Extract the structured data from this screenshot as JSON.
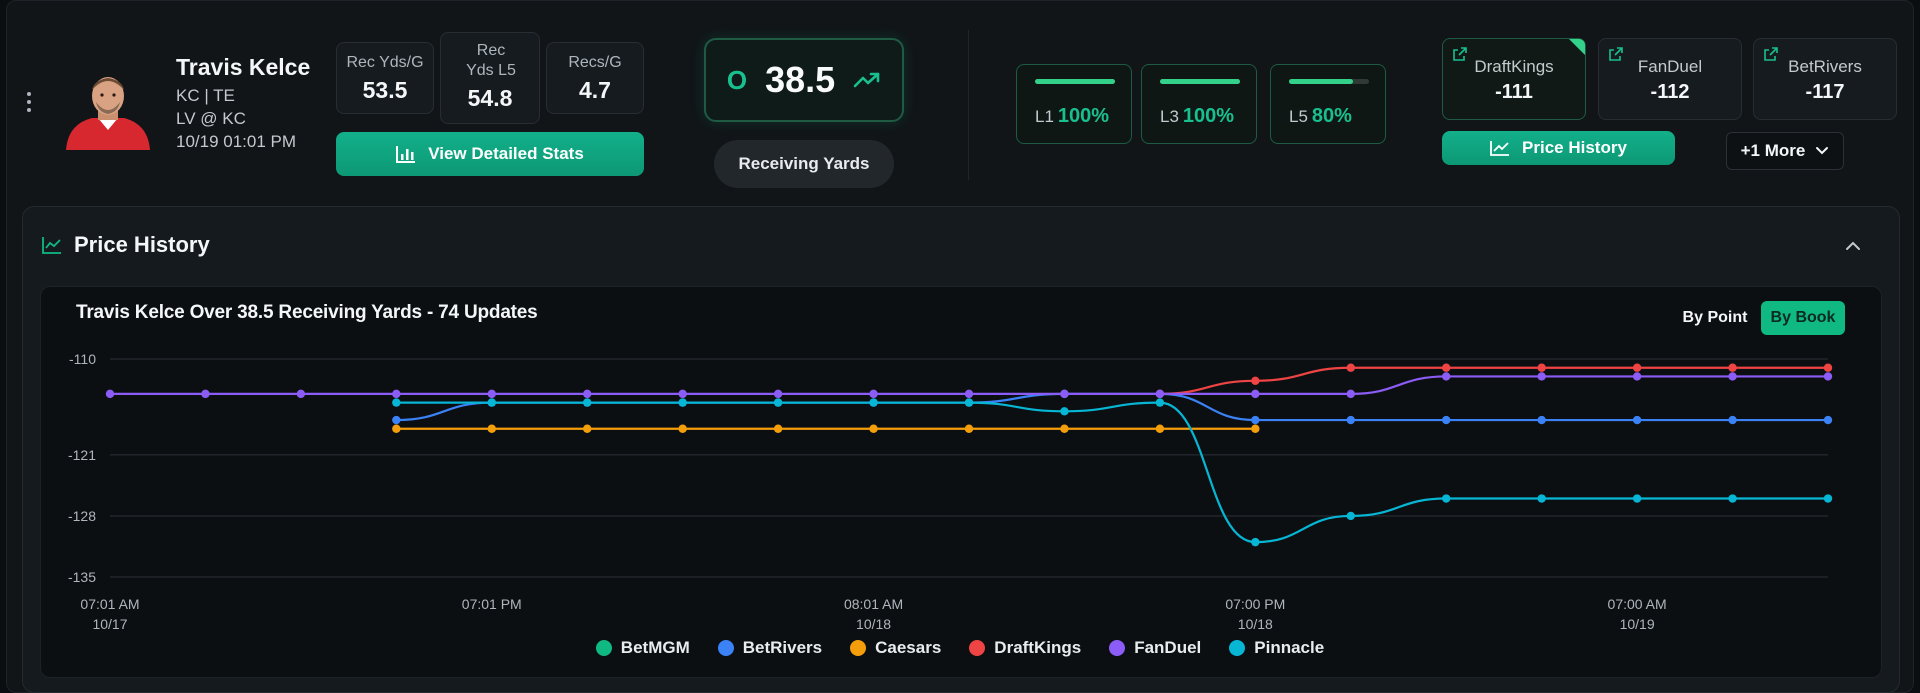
{
  "player": {
    "name": "Travis Kelce",
    "team_pos": "KC | TE",
    "matchup": "LV @ KC",
    "game_time": "10/19 01:01 PM"
  },
  "stats": [
    {
      "label": "Rec Yds/G",
      "value": "53.5"
    },
    {
      "label": "Rec Yds L5",
      "value": "54.8"
    },
    {
      "label": "Recs/G",
      "value": "4.7"
    }
  ],
  "view_stats_label": "View Detailed Stats",
  "prop": {
    "side": "O",
    "line": "38.5",
    "market": "Receiving Yards"
  },
  "hit_rates": [
    {
      "label": "L1",
      "pct": "100%",
      "fraction": 1.0
    },
    {
      "label": "L3",
      "pct": "100%",
      "fraction": 1.0
    },
    {
      "label": "L5",
      "pct": "80%",
      "fraction": 0.8
    }
  ],
  "books": [
    {
      "name": "DraftKings",
      "odds": "-111",
      "active": true
    },
    {
      "name": "FanDuel",
      "odds": "-112",
      "active": false
    },
    {
      "name": "BetRivers",
      "odds": "-117",
      "active": false
    }
  ],
  "price_history_btn": "Price History",
  "more_label": "+1 More",
  "panel_title": "Price History",
  "chart_toggle": {
    "by_point": "By Point",
    "by_book": "By Book",
    "selected": "By Book"
  },
  "colors": {
    "accent": "#10b981",
    "BetMGM": "#10b981",
    "BetRivers": "#3b82f6",
    "Caesars": "#f59e0b",
    "DraftKings": "#ef4444",
    "FanDuel": "#8b5cf6",
    "Pinnacle": "#06b6d4"
  },
  "chart_data": {
    "type": "line",
    "title": "Travis Kelce Over 38.5 Receiving Yards - 74 Updates",
    "xlabel": "",
    "ylabel": "",
    "ylim": [
      -135,
      -110
    ],
    "yticks": [
      -110,
      -121,
      -128,
      -135
    ],
    "xlim": [
      0,
      18
    ],
    "xticks": [
      {
        "x": 0,
        "time": "07:01 AM",
        "date": "10/17"
      },
      {
        "x": 4,
        "time": "07:01 PM",
        "date": ""
      },
      {
        "x": 8,
        "time": "08:01 AM",
        "date": "10/18"
      },
      {
        "x": 12,
        "time": "07:00 PM",
        "date": "10/18"
      },
      {
        "x": 16,
        "time": "07:00 AM",
        "date": "10/19"
      }
    ],
    "legend": [
      "BetMGM",
      "BetRivers",
      "Caesars",
      "DraftKings",
      "FanDuel",
      "Pinnacle"
    ],
    "series": [
      {
        "name": "BetMGM",
        "x": [],
        "values": []
      },
      {
        "name": "BetRivers",
        "x": [
          3,
          4,
          5,
          6,
          7,
          8,
          9,
          10,
          11,
          12,
          13,
          14,
          15,
          16,
          17,
          18
        ],
        "values": [
          -117,
          -115,
          -115,
          -115,
          -115,
          -115,
          -115,
          -114,
          -114,
          -117,
          -117,
          -117,
          -117,
          -117,
          -117,
          -117
        ]
      },
      {
        "name": "Caesars",
        "x": [
          3,
          4,
          5,
          6,
          7,
          8,
          9,
          10,
          11,
          12
        ],
        "values": [
          -118,
          -118,
          -118,
          -118,
          -118,
          -118,
          -118,
          -118,
          -118,
          -118
        ]
      },
      {
        "name": "DraftKings",
        "x": [
          11,
          12,
          13,
          14,
          15,
          16,
          17,
          18
        ],
        "values": [
          -114,
          -112.5,
          -111,
          -111,
          -111,
          -111,
          -111,
          -111
        ]
      },
      {
        "name": "FanDuel",
        "x": [
          0,
          1,
          2,
          3,
          4,
          5,
          6,
          7,
          8,
          9,
          10,
          11,
          12,
          13,
          14,
          15,
          16,
          17,
          18
        ],
        "values": [
          -114,
          -114,
          -114,
          -114,
          -114,
          -114,
          -114,
          -114,
          -114,
          -114,
          -114,
          -114,
          -114,
          -114,
          -112,
          -112,
          -112,
          -112,
          -112
        ]
      },
      {
        "name": "Pinnacle",
        "x": [
          3,
          4,
          5,
          6,
          7,
          8,
          9,
          10,
          11,
          12,
          13,
          14,
          15,
          16,
          17,
          18
        ],
        "values": [
          -115,
          -115,
          -115,
          -115,
          -115,
          -115,
          -115,
          -116,
          -115,
          -131,
          -128,
          -126,
          -126,
          -126,
          -126,
          -126
        ]
      }
    ]
  }
}
